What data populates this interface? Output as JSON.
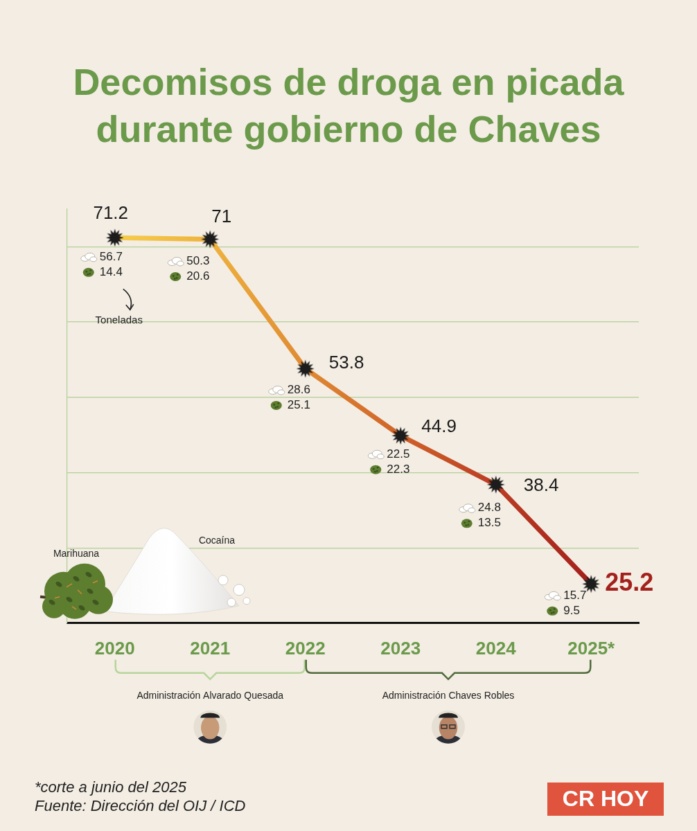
{
  "chart_data": {
    "type": "line",
    "title": "Decomisos de droga en picada durante gobierno de Chaves",
    "unit_label": "Toneladas",
    "categories": [
      "2020",
      "2021",
      "2022",
      "2023",
      "2024",
      "2025*"
    ],
    "values": [
      71.2,
      71,
      53.8,
      44.9,
      38.4,
      25.2
    ],
    "colors": [
      "#f6cd4c",
      "#eeb23e",
      "#df8a33",
      "#cf6229",
      "#bb3d23",
      "#a3201c"
    ],
    "marker": "star",
    "data_labels": true,
    "breakdown": [
      {
        "name": "Cocaína",
        "color": "#ffffff",
        "values": [
          56.7,
          50.3,
          28.6,
          22.5,
          24.8,
          15.7
        ]
      },
      {
        "name": "Marihuana",
        "color": "#5d7d2f",
        "values": [
          14.4,
          20.6,
          25.1,
          22.3,
          13.5,
          9.5
        ]
      }
    ],
    "ylim": [
      20,
      75
    ],
    "yticks": [
      20,
      30,
      40,
      50,
      60,
      70
    ],
    "grid": true,
    "tick_labels": "x",
    "periods": [
      {
        "label": "Administración Alvarado Quesada",
        "from": "2020",
        "to": "2022"
      },
      {
        "label": "Administración Chaves Robles",
        "from": "2022",
        "to": "2025*"
      }
    ],
    "footnotes": [
      "*corte a junio del 2025",
      "Fuente: Dirección del OIJ / ICD"
    ],
    "source_logo": "CR HOY"
  }
}
